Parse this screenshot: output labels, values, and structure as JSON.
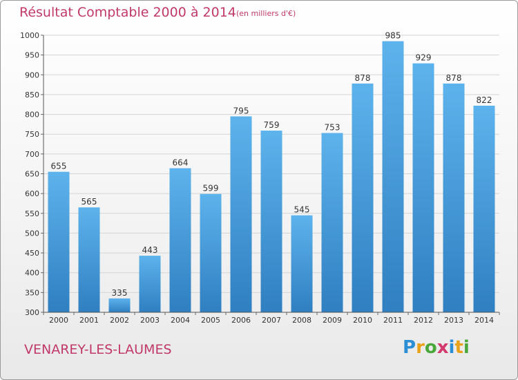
{
  "header": {
    "title": "Résultat Comptable 2000 à 2014",
    "subtitle": "(en milliers d'€)"
  },
  "footer": {
    "city": "VENAREY-LES-LAUMES",
    "logo": [
      "P",
      "r",
      "o",
      "x",
      "i",
      "t",
      "i"
    ],
    "logo_colors": [
      "#2c8fd6",
      "#e8a21a",
      "#4aa83a",
      "#d23a6e",
      "#2c8fd6",
      "#e8a21a",
      "#4aa83a"
    ]
  },
  "colors": {
    "bar_top": "#5db3ec",
    "bar_bottom": "#2f7fc1",
    "grid": "#d4d4d4",
    "title": "#c0396a"
  },
  "chart_data": {
    "type": "bar",
    "title": "Résultat Comptable 2000 à 2014",
    "subtitle": "(en milliers d'€)",
    "categories": [
      "2000",
      "2001",
      "2002",
      "2003",
      "2004",
      "2005",
      "2006",
      "2007",
      "2008",
      "2009",
      "2010",
      "2011",
      "2012",
      "2013",
      "2014"
    ],
    "values": [
      655,
      565,
      335,
      443,
      664,
      599,
      795,
      759,
      545,
      753,
      878,
      985,
      929,
      878,
      822
    ],
    "ylim": [
      300,
      1000
    ],
    "yticks": [
      300,
      350,
      400,
      450,
      500,
      550,
      600,
      650,
      700,
      750,
      800,
      850,
      900,
      950,
      1000
    ],
    "grid": true,
    "data_labels": true
  }
}
